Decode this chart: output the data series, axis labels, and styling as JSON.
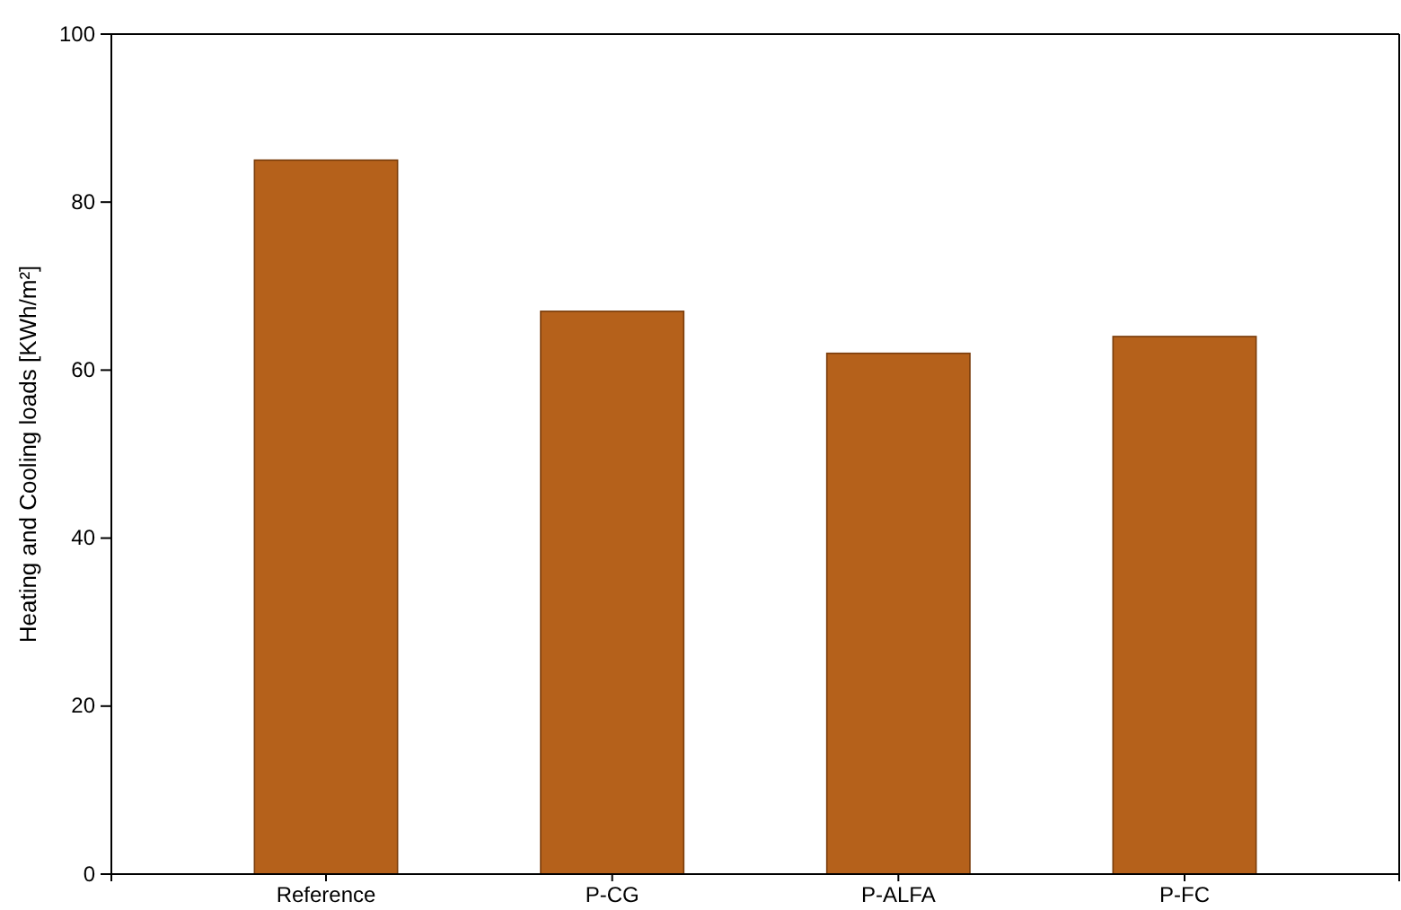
{
  "chart_data": {
    "type": "bar",
    "ylabel": "Heating and Cooling loads [KWh/m²]",
    "categories": [
      "Reference",
      "P-CG",
      "P-ALFA",
      "P-FC"
    ],
    "values": [
      85,
      67,
      62,
      64
    ],
    "color": "#b5611b",
    "ylim": [
      0,
      100
    ],
    "yticks": [
      0,
      20,
      40,
      60,
      80,
      100
    ],
    "grid": false
  }
}
